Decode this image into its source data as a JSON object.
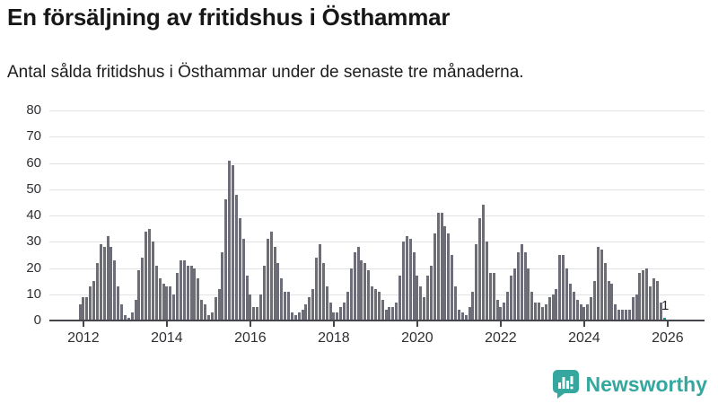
{
  "header": {
    "title": "En försäljning av fritidshus i Östhammar",
    "subtitle": "Antal sålda fritidshus i Östhammar under de senaste tre månaderna."
  },
  "chart_data": {
    "type": "bar",
    "title": "En försäljning av fritidshus i Östhammar",
    "subtitle": "Antal sålda fritidshus i Östhammar under de senaste tre månaderna.",
    "xlabel": "",
    "ylabel": "",
    "grid": true,
    "ylim": [
      0,
      80
    ],
    "y_ticks": [
      0,
      10,
      20,
      30,
      40,
      50,
      60,
      70,
      80
    ],
    "x_tick_years": [
      2012,
      2014,
      2016,
      2018,
      2020,
      2022,
      2024,
      2026
    ],
    "x_start_month": "2011-12",
    "x_end_month": "2025-12",
    "bar_color": "#6d6d77",
    "highlight_color": "#0e969c",
    "highlight_index": 168,
    "annotation": {
      "text": "1",
      "index": 168
    },
    "values": [
      6,
      9,
      9,
      13,
      15,
      22,
      29,
      28,
      32,
      28,
      23,
      13,
      6,
      2,
      1,
      3,
      8,
      19,
      24,
      34,
      35,
      30,
      21,
      16,
      14,
      13,
      13,
      10,
      18,
      23,
      23,
      21,
      21,
      20,
      16,
      8,
      6,
      2,
      3,
      9,
      12,
      26,
      46,
      61,
      59,
      48,
      39,
      31,
      17,
      10,
      5,
      5,
      10,
      21,
      31,
      34,
      28,
      22,
      16,
      11,
      11,
      3,
      2,
      3,
      4,
      6,
      9,
      12,
      24,
      29,
      22,
      13,
      7,
      3,
      3,
      5,
      7,
      11,
      20,
      26,
      28,
      23,
      22,
      19,
      13,
      12,
      11,
      8,
      4,
      5,
      5,
      7,
      17,
      30,
      32,
      31,
      26,
      17,
      13,
      9,
      17,
      21,
      33,
      41,
      41,
      36,
      33,
      25,
      13,
      4,
      3,
      2,
      5,
      11,
      29,
      39,
      44,
      30,
      18,
      18,
      8,
      5,
      7,
      11,
      17,
      20,
      26,
      29,
      26,
      20,
      11,
      7,
      7,
      5,
      6,
      9,
      10,
      12,
      25,
      25,
      20,
      14,
      11,
      8,
      6,
      5,
      6,
      9,
      15,
      28,
      27,
      22,
      15,
      14,
      6,
      4,
      4,
      4,
      4,
      9,
      10,
      18,
      19,
      20,
      13,
      16,
      15,
      7,
      1
    ]
  },
  "footer": {
    "brand": "Newsworthy",
    "brand_color": "#36a79e",
    "logo_icon": "newsworthy-chart-bubble-icon"
  }
}
